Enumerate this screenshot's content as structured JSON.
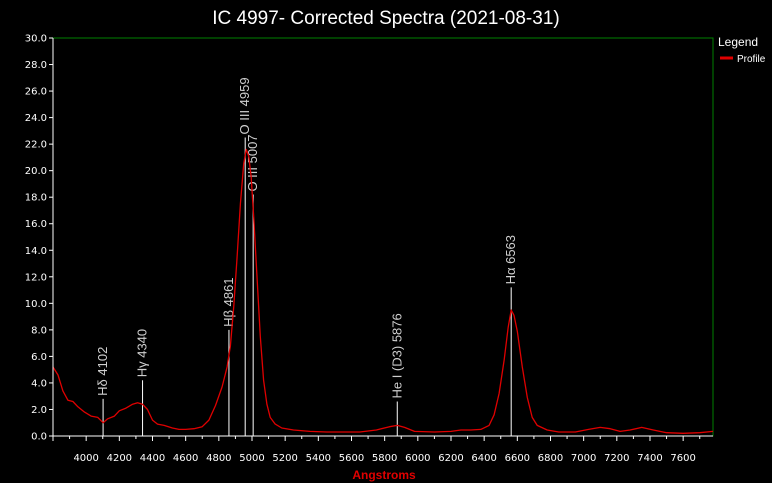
{
  "chart_data": {
    "type": "line",
    "title": "IC 4997- Corrected Spectra (2021-08-31)",
    "xlabel": "Angstroms",
    "ylabel": "",
    "xlim": [
      3800,
      7780
    ],
    "ylim": [
      0,
      30
    ],
    "x_ticks": [
      4000,
      4200,
      4400,
      4600,
      4800,
      5000,
      5200,
      5400,
      5600,
      5800,
      6000,
      6200,
      6400,
      6600,
      6800,
      7000,
      7200,
      7400,
      7600
    ],
    "y_ticks": [
      "0.0",
      "2.0",
      "4.0",
      "6.0",
      "8.0",
      "10.0",
      "12.0",
      "14.0",
      "16.0",
      "18.0",
      "20.0",
      "22.0",
      "24.0",
      "26.0",
      "28.0",
      "30.0"
    ],
    "grid": false,
    "legend": {
      "title": "Legend",
      "position": "right"
    },
    "series": [
      {
        "name": "Profile",
        "color": "#e00000",
        "points": [
          [
            3800,
            5.2
          ],
          [
            3830,
            4.6
          ],
          [
            3860,
            3.4
          ],
          [
            3890,
            2.7
          ],
          [
            3920,
            2.6
          ],
          [
            3950,
            2.2
          ],
          [
            3990,
            1.8
          ],
          [
            4030,
            1.5
          ],
          [
            4070,
            1.4
          ],
          [
            4102,
            1.0
          ],
          [
            4130,
            1.3
          ],
          [
            4170,
            1.5
          ],
          [
            4200,
            1.9
          ],
          [
            4240,
            2.1
          ],
          [
            4280,
            2.4
          ],
          [
            4310,
            2.5
          ],
          [
            4340,
            2.4
          ],
          [
            4370,
            2.0
          ],
          [
            4400,
            1.2
          ],
          [
            4430,
            0.9
          ],
          [
            4470,
            0.8
          ],
          [
            4520,
            0.6
          ],
          [
            4560,
            0.5
          ],
          [
            4600,
            0.5
          ],
          [
            4650,
            0.55
          ],
          [
            4700,
            0.7
          ],
          [
            4740,
            1.2
          ],
          [
            4780,
            2.3
          ],
          [
            4820,
            3.7
          ],
          [
            4850,
            5.2
          ],
          [
            4870,
            6.8
          ],
          [
            4890,
            9.8
          ],
          [
            4910,
            13.5
          ],
          [
            4930,
            17.5
          ],
          [
            4950,
            20.5
          ],
          [
            4965,
            21.6
          ],
          [
            4980,
            21.1
          ],
          [
            4995,
            19.5
          ],
          [
            5010,
            16.5
          ],
          [
            5030,
            12.0
          ],
          [
            5050,
            7.5
          ],
          [
            5070,
            4.2
          ],
          [
            5090,
            2.4
          ],
          [
            5110,
            1.4
          ],
          [
            5140,
            0.9
          ],
          [
            5180,
            0.6
          ],
          [
            5250,
            0.45
          ],
          [
            5350,
            0.35
          ],
          [
            5450,
            0.3
          ],
          [
            5550,
            0.3
          ],
          [
            5650,
            0.3
          ],
          [
            5750,
            0.45
          ],
          [
            5830,
            0.7
          ],
          [
            5876,
            0.8
          ],
          [
            5920,
            0.65
          ],
          [
            5980,
            0.35
          ],
          [
            6100,
            0.3
          ],
          [
            6200,
            0.35
          ],
          [
            6260,
            0.45
          ],
          [
            6320,
            0.45
          ],
          [
            6380,
            0.5
          ],
          [
            6430,
            0.8
          ],
          [
            6460,
            1.6
          ],
          [
            6490,
            3.2
          ],
          [
            6520,
            5.7
          ],
          [
            6545,
            8.2
          ],
          [
            6563,
            9.5
          ],
          [
            6580,
            9.1
          ],
          [
            6600,
            7.9
          ],
          [
            6630,
            5.2
          ],
          [
            6660,
            2.9
          ],
          [
            6690,
            1.4
          ],
          [
            6720,
            0.8
          ],
          [
            6780,
            0.45
          ],
          [
            6850,
            0.3
          ],
          [
            6950,
            0.3
          ],
          [
            7030,
            0.5
          ],
          [
            7100,
            0.65
          ],
          [
            7160,
            0.55
          ],
          [
            7220,
            0.35
          ],
          [
            7280,
            0.45
          ],
          [
            7350,
            0.65
          ],
          [
            7420,
            0.45
          ],
          [
            7500,
            0.25
          ],
          [
            7600,
            0.2
          ],
          [
            7700,
            0.25
          ],
          [
            7780,
            0.35
          ]
        ]
      }
    ],
    "annotations": [
      {
        "label": "Hδ 4102",
        "x": 4102,
        "line_top": 2.8
      },
      {
        "label": "Hγ 4340",
        "x": 4340,
        "line_top": 4.2
      },
      {
        "label": "Hβ 4861",
        "x": 4861,
        "line_top": 8.0
      },
      {
        "label": "O III 4959",
        "x": 4959,
        "line_top": 22.5
      },
      {
        "label": "O III 5007",
        "x": 5007,
        "line_top": 18.2
      },
      {
        "label": "He I (D3) 5876",
        "x": 5876,
        "line_top": 2.6
      },
      {
        "label": "Hα 6563",
        "x": 6563,
        "line_top": 11.2
      }
    ],
    "colors": {
      "plot_frame": "#008000",
      "axis_label": "#e00000",
      "annotation_line": "#ffffff",
      "annotation_text": "#cfcfcf"
    }
  }
}
